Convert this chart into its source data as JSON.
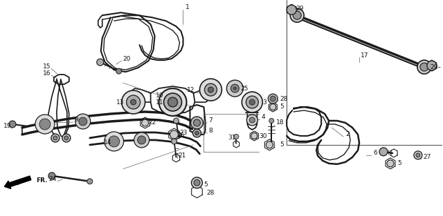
{
  "bg_color": "#ffffff",
  "line_color": "#1a1a1a",
  "fig_width": 6.4,
  "fig_height": 3.13,
  "dpi": 100
}
